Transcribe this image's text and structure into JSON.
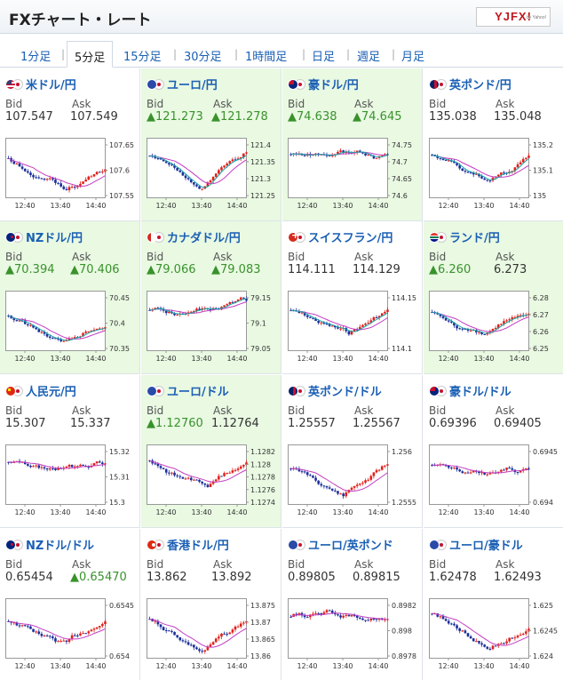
{
  "header": {
    "title": "FXチャート・レート",
    "logo": "YJFX!",
    "logo_sub": "by Yahoo!"
  },
  "tabs": [
    {
      "label": "1分足",
      "active": false
    },
    {
      "label": "5分足",
      "active": true
    },
    {
      "label": "15分足",
      "active": false
    },
    {
      "label": "30分足",
      "active": false
    },
    {
      "label": "1時間足",
      "active": false
    },
    {
      "label": "日足",
      "active": false
    },
    {
      "label": "週足",
      "active": false
    },
    {
      "label": "月足",
      "active": false
    }
  ],
  "labels": {
    "bid": "Bid",
    "ask": "Ask"
  },
  "time_ticks": [
    "12:40",
    "13:40",
    "14:40"
  ],
  "colors": {
    "link": "#1a5fb4",
    "up_text": "#39922c",
    "up_bg": "#e9f9e2",
    "candle_up": "#e0201c",
    "candle_down": "#1c2f9a",
    "ma1": "#c23cc4",
    "ma2": "#1aa6a6"
  },
  "pairs": [
    {
      "name": "米ドル/円",
      "flag": "us",
      "bid": "107.547",
      "ask": "107.549",
      "up": false,
      "ticks": [
        "107.65",
        "107.6",
        "107.55"
      ],
      "ma2": false
    },
    {
      "name": "ユーロ/円",
      "flag": "eu",
      "bid": "▲121.273",
      "ask": "▲121.278",
      "up": true,
      "ticks": [
        "121.4",
        "121.35",
        "121.3",
        "121.25"
      ],
      "ma2": true
    },
    {
      "name": "豪ドル/円",
      "flag": "au",
      "bid": "▲74.638",
      "ask": "▲74.645",
      "up": true,
      "ticks": [
        "74.75",
        "74.7",
        "74.65",
        "74.6"
      ],
      "ma2": true
    },
    {
      "name": "英ポンド/円",
      "flag": "gb",
      "bid": "135.038",
      "ask": "135.048",
      "up": false,
      "ticks": [
        "135.2",
        "135.1",
        "135"
      ],
      "ma2": true
    },
    {
      "name": "NZドル/円",
      "flag": "nz",
      "bid": "▲70.394",
      "ask": "▲70.406",
      "up": true,
      "ticks": [
        "70.45",
        "70.4",
        "70.35"
      ],
      "ma2": true
    },
    {
      "name": "カナダドル/円",
      "flag": "ca",
      "bid": "▲79.066",
      "ask": "▲79.083",
      "up": true,
      "ticks": [
        "79.15",
        "79.1",
        "79.05"
      ],
      "ma2": true
    },
    {
      "name": "スイスフラン/円",
      "flag": "ch",
      "bid": "114.111",
      "ask": "114.129",
      "up": false,
      "ticks": [
        "114.15",
        "114.1"
      ],
      "ma2": true
    },
    {
      "name": "ランド/円",
      "flag": "za",
      "bid": "▲6.260",
      "ask": "6.273",
      "up": true,
      "ticks": [
        "6.28",
        "6.27",
        "6.26",
        "6.25"
      ],
      "ma2": true
    },
    {
      "name": "人民元/円",
      "flag": "cn",
      "bid": "15.307",
      "ask": "15.337",
      "up": false,
      "ticks": [
        "15.32",
        "15.31",
        "15.3"
      ],
      "ma2": false
    },
    {
      "name": "ユーロ/ドル",
      "flag": "eu",
      "bid": "▲1.12760",
      "ask": "1.12764",
      "up": true,
      "ticks": [
        "1.1282",
        "1.128",
        "1.1278",
        "1.1276",
        "1.1274"
      ],
      "ma2": false
    },
    {
      "name": "英ポンド/ドル",
      "flag": "gb",
      "bid": "1.25557",
      "ask": "1.25567",
      "up": false,
      "ticks": [
        "1.256",
        "1.2555"
      ],
      "ma2": false
    },
    {
      "name": "豪ドル/ドル",
      "flag": "au",
      "bid": "0.69396",
      "ask": "0.69405",
      "up": false,
      "ticks": [
        "0.6945",
        "0.694"
      ],
      "ma2": false
    },
    {
      "name": "NZドル/ドル",
      "flag": "nz",
      "bid": "0.65454",
      "ask": "▲0.65470",
      "up": false,
      "ticks": [
        "0.6545",
        "0.654"
      ],
      "ma2": false
    },
    {
      "name": "香港ドル/円",
      "flag": "hk",
      "bid": "13.862",
      "ask": "13.892",
      "up": false,
      "ticks": [
        "13.875",
        "13.87",
        "13.865",
        "13.86"
      ],
      "ma2": false
    },
    {
      "name": "ユーロ/英ポンド",
      "flag": "eu",
      "bid": "0.89805",
      "ask": "0.89815",
      "up": false,
      "ticks": [
        "0.8982",
        "0.898",
        "0.8978"
      ],
      "ma2": false
    },
    {
      "name": "ユーロ/豪ドル",
      "flag": "eu",
      "bid": "1.62478",
      "ask": "1.62493",
      "up": false,
      "ticks": [
        "1.625",
        "1.6245",
        "1.624"
      ],
      "ma2": false
    }
  ]
}
